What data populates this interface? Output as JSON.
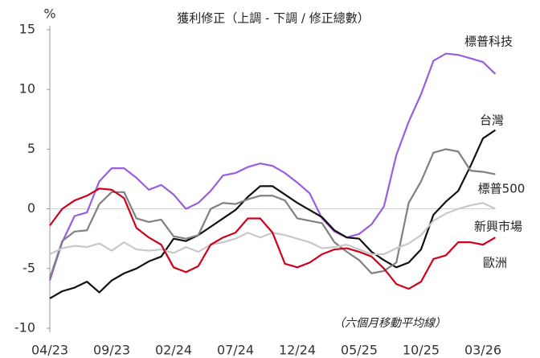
{
  "chart_data": {
    "type": "line",
    "title": "獲利修正（上調 - 下調 / 修正總數）",
    "y_label": "%",
    "annotation": "（六個月移動平均線）",
    "categories": [
      "04/23",
      null,
      null,
      null,
      null,
      "09/23",
      null,
      null,
      null,
      null,
      "02/24",
      null,
      null,
      null,
      null,
      "07/24",
      null,
      null,
      null,
      null,
      "12/24",
      null,
      null,
      null,
      null,
      "05/25",
      null,
      null,
      null,
      null,
      "10/25",
      null,
      null,
      null,
      null,
      "03/26",
      null
    ],
    "ylim": [
      -10,
      15
    ],
    "yticks": [
      -10,
      -5,
      0,
      5,
      10,
      15
    ],
    "series": [
      {
        "name": "標普科技",
        "color": "#9a5de0",
        "values": [
          -6,
          -2.8,
          -0.6,
          -0.3,
          2.3,
          3.4,
          3.4,
          2.6,
          1.6,
          2.0,
          1.2,
          0.0,
          0.5,
          1.5,
          2.8,
          3.0,
          3.5,
          3.8,
          3.6,
          3.0,
          2.2,
          1.3,
          -0.8,
          -1.9,
          -2.4,
          -2.1,
          -1.3,
          0.2,
          4.5,
          7.3,
          9.6,
          12.4,
          13.0,
          12.9,
          12.6,
          12.3,
          11.3
        ]
      },
      {
        "name": "台灣",
        "color": "#111111",
        "values": [
          -7.5,
          -6.9,
          -6.6,
          -6.1,
          -7.0,
          -6.0,
          -5.4,
          -5.0,
          -4.4,
          -4.0,
          -2.5,
          -2.7,
          -2.2,
          -1.5,
          -0.8,
          -0.1,
          1.0,
          1.9,
          1.9,
          1.2,
          0.5,
          -0.1,
          -0.7,
          -1.8,
          -2.4,
          -2.5,
          -3.6,
          -4.3,
          -4.9,
          -4.5,
          -3.4,
          -0.5,
          0.6,
          1.5,
          3.6,
          5.9,
          6.6
        ]
      },
      {
        "name": "標普500",
        "color": "#808080",
        "values": [
          -5.8,
          -2.7,
          -1.9,
          -1.8,
          0.4,
          1.4,
          1.4,
          -0.8,
          -1.1,
          -0.9,
          -2.3,
          -2.5,
          -2.2,
          0.0,
          0.5,
          0.4,
          0.8,
          1.1,
          1.1,
          0.7,
          -0.8,
          -1.0,
          -1.2,
          -2.8,
          -3.6,
          -4.3,
          -5.4,
          -5.2,
          -4.5,
          0.5,
          2.3,
          4.7,
          5.0,
          4.8,
          3.2,
          3.1,
          2.9
        ]
      },
      {
        "name": "新興市場",
        "color": "#c8c8c8",
        "values": [
          -3.8,
          -3.3,
          -3.1,
          -3.2,
          -2.9,
          -3.5,
          -2.8,
          -3.4,
          -3.5,
          -3.4,
          -3.7,
          -3.2,
          -3.6,
          -3.0,
          -2.8,
          -2.5,
          -2.0,
          -2.4,
          -2.0,
          -2.2,
          -2.5,
          -2.8,
          -3.3,
          -3.2,
          -3.0,
          -3.4,
          -3.8,
          -3.8,
          -3.3,
          -2.9,
          -2.2,
          -1.0,
          -0.4,
          0.0,
          0.3,
          0.5,
          0.0
        ]
      },
      {
        "name": "歐洲",
        "color": "#d0021b",
        "values": [
          -1.4,
          0.0,
          0.7,
          1.1,
          1.7,
          1.6,
          0.9,
          -1.6,
          -2.4,
          -3.0,
          -4.9,
          -5.3,
          -4.8,
          -3.0,
          -2.4,
          -2.0,
          -0.8,
          -0.8,
          -2.0,
          -4.6,
          -4.9,
          -4.5,
          -3.8,
          -3.4,
          -3.3,
          -3.6,
          -4.0,
          -5.0,
          -6.3,
          -6.7,
          -6.1,
          -4.2,
          -3.9,
          -2.8,
          -2.8,
          -3.0,
          -2.4
        ]
      }
    ]
  }
}
